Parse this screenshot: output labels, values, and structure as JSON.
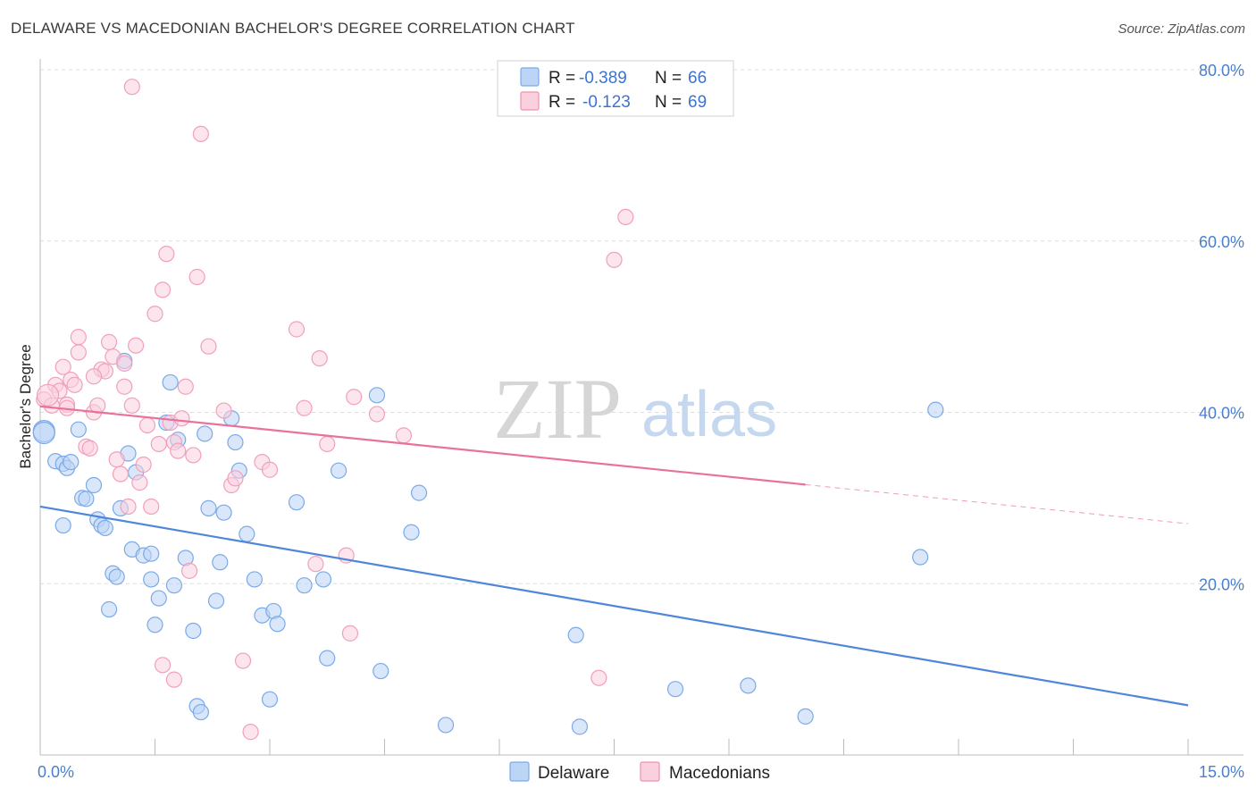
{
  "header": {
    "title": "DELAWARE VS MACEDONIAN BACHELOR'S DEGREE CORRELATION CHART",
    "source": "Source: ZipAtlas.com"
  },
  "watermark": {
    "zip": "ZIP",
    "atlas": "atlas"
  },
  "legend": {
    "rows": [
      {
        "r_label": "R = ",
        "r_value": "-0.389",
        "n_label": "N = ",
        "n_value": "66",
        "color": "#7aaae8",
        "fill": "#bcd4f5"
      },
      {
        "r_label": "R = ",
        "r_value": "-0.123",
        "n_label": "N = ",
        "n_value": "69",
        "color": "#f08fb0",
        "fill": "#fbd0de"
      }
    ]
  },
  "bottom_legend": {
    "items": [
      {
        "label": "Delaware",
        "color": "#7aaae8",
        "fill": "#bcd4f5"
      },
      {
        "label": "Macedonians",
        "color": "#f08fb0",
        "fill": "#fbd0de"
      }
    ]
  },
  "chart_data": {
    "type": "scatter",
    "title": "DELAWARE VS MACEDONIAN BACHELOR'S DEGREE CORRELATION CHART",
    "xlabel": "",
    "ylabel": "Bachelor's Degree",
    "xlim": [
      0,
      15
    ],
    "ylim": [
      0,
      80
    ],
    "x_tick_labels": [
      "0.0%",
      "15.0%"
    ],
    "y_ticks": [
      20,
      40,
      60,
      80
    ],
    "y_tick_labels": [
      "20.0%",
      "40.0%",
      "60.0%",
      "80.0%"
    ],
    "grid": true,
    "legend_position": "top-center",
    "series": [
      {
        "name": "Delaware",
        "color": "#4f86d9",
        "trend": {
          "x0": 0,
          "y0": 29.0,
          "x1": 15,
          "y1": 5.8,
          "solid_to": 15
        },
        "points": [
          [
            0.05,
            37.8
          ],
          [
            0.2,
            34.3
          ],
          [
            0.3,
            34.0
          ],
          [
            0.35,
            33.5
          ],
          [
            0.4,
            34.2
          ],
          [
            0.5,
            38.0
          ],
          [
            0.55,
            30.0
          ],
          [
            0.6,
            29.9
          ],
          [
            0.7,
            31.5
          ],
          [
            0.75,
            27.5
          ],
          [
            0.8,
            26.8
          ],
          [
            0.85,
            26.5
          ],
          [
            0.3,
            26.8
          ],
          [
            0.9,
            17.0
          ],
          [
            0.95,
            21.2
          ],
          [
            1.0,
            20.8
          ],
          [
            1.05,
            28.8
          ],
          [
            1.1,
            46.0
          ],
          [
            1.15,
            35.2
          ],
          [
            1.2,
            24.0
          ],
          [
            1.25,
            33.0
          ],
          [
            1.35,
            23.3
          ],
          [
            1.45,
            23.5
          ],
          [
            1.45,
            20.5
          ],
          [
            1.5,
            15.2
          ],
          [
            1.55,
            18.3
          ],
          [
            1.65,
            38.8
          ],
          [
            1.7,
            43.5
          ],
          [
            1.75,
            19.8
          ],
          [
            1.8,
            36.8
          ],
          [
            1.9,
            23.0
          ],
          [
            2.0,
            14.5
          ],
          [
            2.05,
            5.7
          ],
          [
            2.1,
            5.0
          ],
          [
            2.15,
            37.5
          ],
          [
            2.2,
            28.8
          ],
          [
            2.3,
            18.0
          ],
          [
            2.35,
            22.5
          ],
          [
            2.4,
            28.3
          ],
          [
            2.5,
            39.3
          ],
          [
            2.55,
            36.5
          ],
          [
            2.6,
            33.2
          ],
          [
            2.7,
            25.8
          ],
          [
            2.8,
            20.5
          ],
          [
            2.9,
            16.3
          ],
          [
            3.0,
            6.5
          ],
          [
            3.05,
            16.8
          ],
          [
            3.1,
            15.3
          ],
          [
            3.35,
            29.5
          ],
          [
            3.45,
            19.8
          ],
          [
            3.7,
            20.5
          ],
          [
            3.75,
            11.3
          ],
          [
            3.9,
            33.2
          ],
          [
            4.4,
            42.0
          ],
          [
            4.45,
            9.8
          ],
          [
            4.85,
            26.0
          ],
          [
            4.95,
            30.6
          ],
          [
            5.3,
            3.5
          ],
          [
            7.0,
            14.0
          ],
          [
            7.05,
            3.3
          ],
          [
            8.3,
            7.7
          ],
          [
            9.25,
            8.1
          ],
          [
            10.0,
            4.5
          ],
          [
            11.5,
            23.1
          ],
          [
            11.7,
            40.3
          ],
          [
            0.05,
            37.6
          ]
        ]
      },
      {
        "name": "Macedonians",
        "color": "#e8729b",
        "trend": {
          "x0": 0,
          "y0": 40.7,
          "x1": 15,
          "y1": 27.0,
          "solid_to": 10.0
        },
        "points": [
          [
            0.05,
            41.5
          ],
          [
            0.15,
            40.8
          ],
          [
            0.2,
            43.2
          ],
          [
            0.25,
            42.5
          ],
          [
            0.3,
            45.3
          ],
          [
            0.35,
            40.9
          ],
          [
            0.4,
            43.8
          ],
          [
            0.45,
            43.2
          ],
          [
            0.5,
            48.8
          ],
          [
            0.5,
            47.0
          ],
          [
            0.6,
            36.0
          ],
          [
            0.65,
            35.8
          ],
          [
            0.7,
            40.0
          ],
          [
            0.75,
            40.8
          ],
          [
            0.8,
            45.0
          ],
          [
            0.85,
            44.8
          ],
          [
            0.9,
            48.2
          ],
          [
            0.95,
            46.5
          ],
          [
            1.0,
            34.5
          ],
          [
            1.05,
            32.8
          ],
          [
            1.1,
            45.7
          ],
          [
            1.15,
            29.0
          ],
          [
            1.2,
            40.8
          ],
          [
            1.25,
            47.8
          ],
          [
            1.3,
            31.8
          ],
          [
            1.35,
            33.9
          ],
          [
            1.4,
            38.5
          ],
          [
            1.45,
            29.0
          ],
          [
            1.5,
            51.5
          ],
          [
            1.55,
            36.3
          ],
          [
            1.6,
            54.3
          ],
          [
            1.65,
            58.5
          ],
          [
            1.7,
            38.8
          ],
          [
            1.75,
            36.5
          ],
          [
            1.8,
            35.5
          ],
          [
            1.85,
            39.3
          ],
          [
            1.9,
            43.0
          ],
          [
            1.95,
            21.5
          ],
          [
            2.0,
            35.0
          ],
          [
            2.05,
            55.8
          ],
          [
            2.1,
            72.5
          ],
          [
            2.2,
            47.7
          ],
          [
            2.4,
            40.2
          ],
          [
            2.5,
            31.5
          ],
          [
            2.55,
            32.3
          ],
          [
            2.65,
            11.0
          ],
          [
            2.75,
            2.7
          ],
          [
            2.9,
            34.2
          ],
          [
            3.0,
            33.3
          ],
          [
            1.2,
            78.0
          ],
          [
            1.6,
            10.5
          ],
          [
            1.75,
            8.8
          ],
          [
            3.35,
            49.7
          ],
          [
            3.45,
            40.5
          ],
          [
            3.6,
            22.3
          ],
          [
            3.65,
            46.3
          ],
          [
            3.75,
            36.3
          ],
          [
            4.0,
            23.3
          ],
          [
            4.05,
            14.2
          ],
          [
            4.1,
            41.8
          ],
          [
            4.4,
            39.8
          ],
          [
            4.75,
            37.3
          ],
          [
            7.3,
            9.0
          ],
          [
            7.5,
            57.8
          ],
          [
            7.65,
            62.8
          ],
          [
            1.1,
            43.0
          ],
          [
            0.7,
            44.2
          ],
          [
            0.35,
            40.5
          ],
          [
            0.1,
            42.0
          ]
        ]
      }
    ]
  }
}
